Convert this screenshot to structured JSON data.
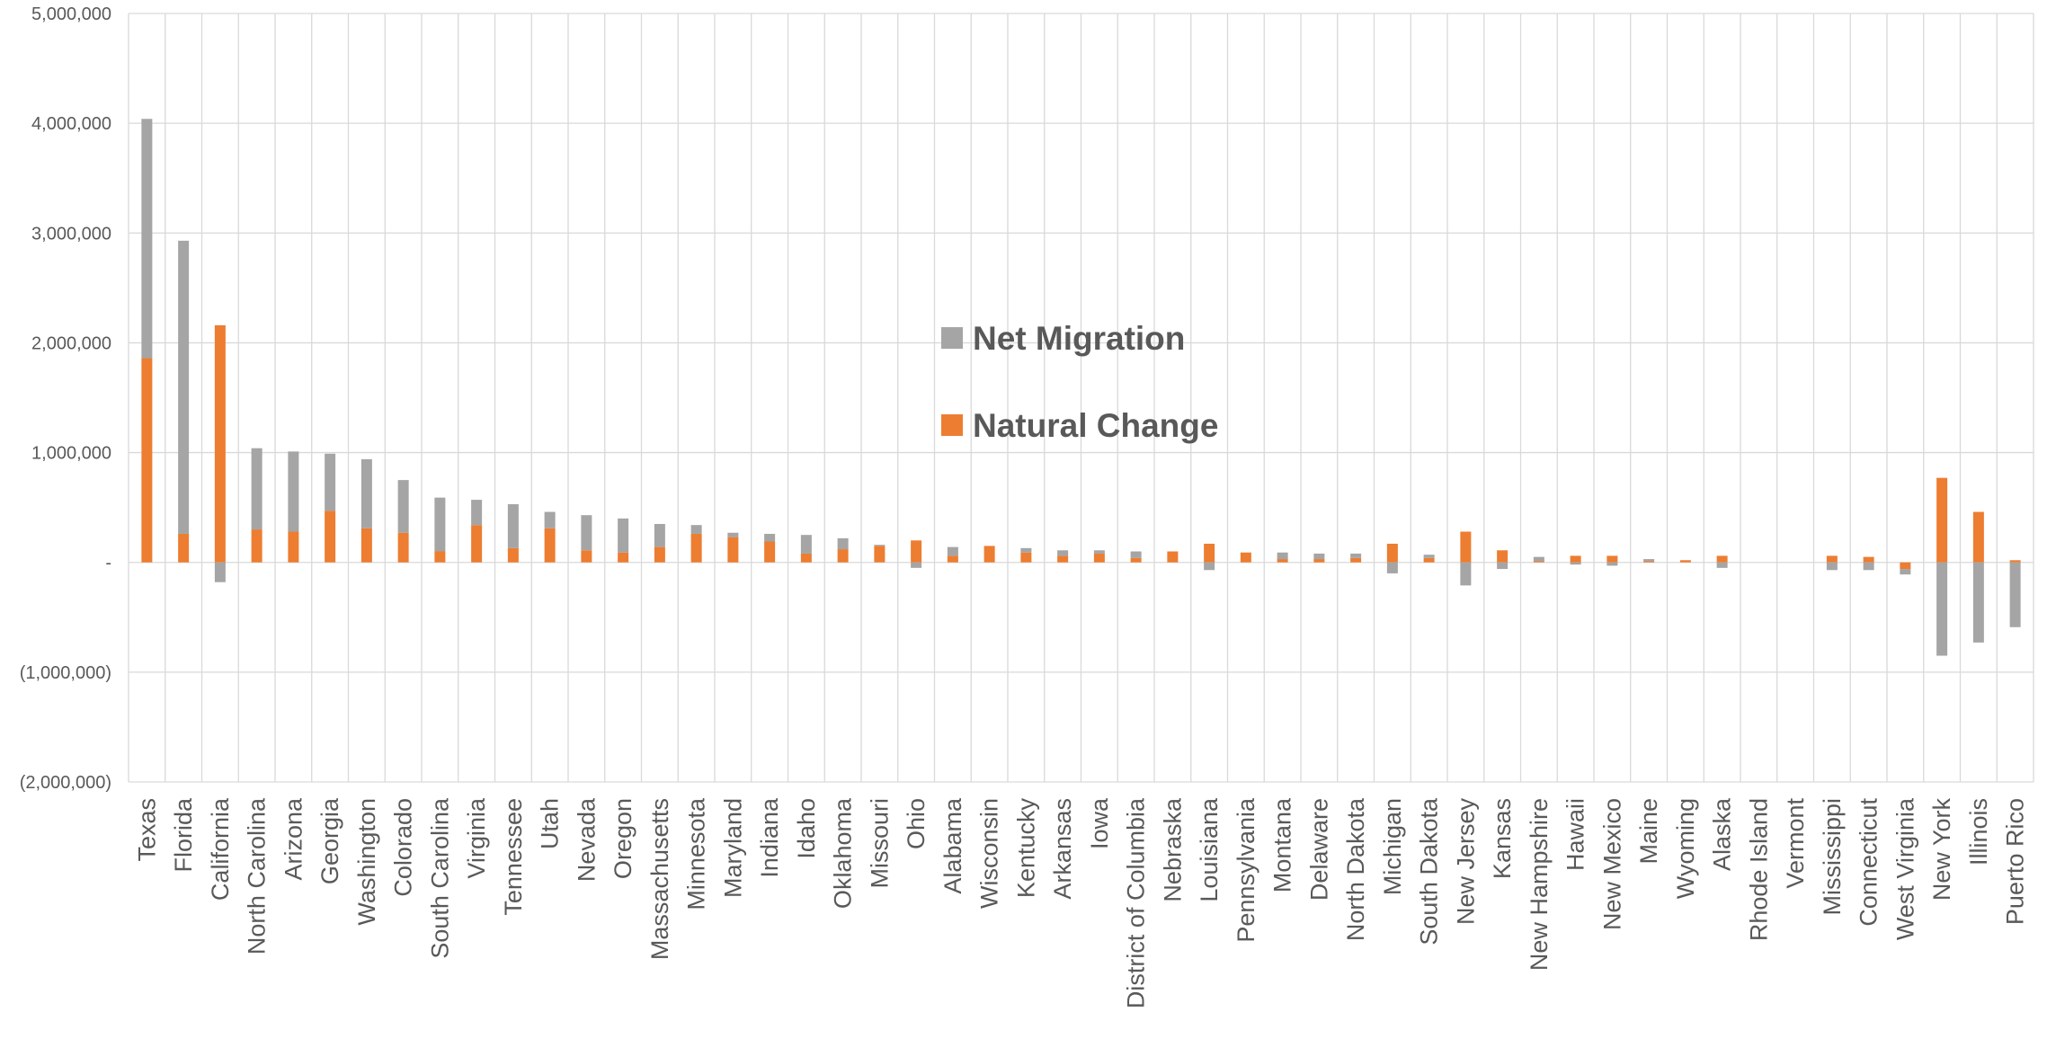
{
  "chart_data": {
    "type": "bar",
    "stacked": true,
    "title": "",
    "xlabel": "",
    "ylabel": "",
    "ylim": [
      -2000000,
      5000000
    ],
    "yticks": [
      5000000,
      4000000,
      3000000,
      2000000,
      1000000,
      0,
      -1000000,
      -2000000
    ],
    "ytick_labels": [
      "5,000,000",
      "4,000,000",
      "3,000,000",
      "2,000,000",
      "1,000,000",
      "-",
      "(1,000,000)",
      "(2,000,000)"
    ],
    "grid": true,
    "legend_position": "center",
    "categories": [
      "Texas",
      "Florida",
      "California",
      "North Carolina",
      "Arizona",
      "Georgia",
      "Washington",
      "Colorado",
      "South Carolina",
      "Virginia",
      "Tennessee",
      "Utah",
      "Nevada",
      "Oregon",
      "Massachusetts",
      "Minnesota",
      "Maryland",
      "Indiana",
      "Idaho",
      "Oklahoma",
      "Missouri",
      "Ohio",
      "Alabama",
      "Wisconsin",
      "Kentucky",
      "Arkansas",
      "Iowa",
      "District of Columbia",
      "Nebraska",
      "Louisiana",
      "Pennsylvania",
      "Montana",
      "Delaware",
      "North Dakota",
      "Michigan",
      "South Dakota",
      "New Jersey",
      "Kansas",
      "New Hampshire",
      "Hawaii",
      "New Mexico",
      "Maine",
      "Wyoming",
      "Alaska",
      "Rhode Island",
      "Vermont",
      "Mississippi",
      "Connecticut",
      "West Virginia",
      "New York",
      "Illinois",
      "Puerto Rico"
    ],
    "series": [
      {
        "name": "Natural Change",
        "color": "#ED7D31",
        "values": [
          1860000,
          260000,
          2160000,
          300000,
          280000,
          470000,
          310000,
          270000,
          100000,
          340000,
          130000,
          310000,
          110000,
          90000,
          140000,
          260000,
          230000,
          190000,
          80000,
          120000,
          150000,
          200000,
          60000,
          150000,
          90000,
          60000,
          80000,
          40000,
          100000,
          170000,
          90000,
          30000,
          30000,
          40000,
          170000,
          40000,
          280000,
          110000,
          10000,
          60000,
          60000,
          10000,
          20000,
          60000,
          0,
          0,
          60000,
          50000,
          -60000,
          770000,
          460000,
          20000
        ]
      },
      {
        "name": "Net Migration",
        "color": "#A5A5A5",
        "values": [
          2180000,
          2670000,
          -180000,
          740000,
          730000,
          520000,
          630000,
          480000,
          490000,
          230000,
          400000,
          150000,
          320000,
          310000,
          210000,
          80000,
          40000,
          70000,
          170000,
          100000,
          10000,
          -50000,
          80000,
          0,
          40000,
          50000,
          30000,
          60000,
          0,
          -70000,
          0,
          60000,
          50000,
          40000,
          -100000,
          30000,
          -210000,
          -60000,
          40000,
          -20000,
          -30000,
          20000,
          0,
          -50000,
          0,
          0,
          -70000,
          -70000,
          -50000,
          -850000,
          -730000,
          -590000
        ]
      }
    ]
  }
}
